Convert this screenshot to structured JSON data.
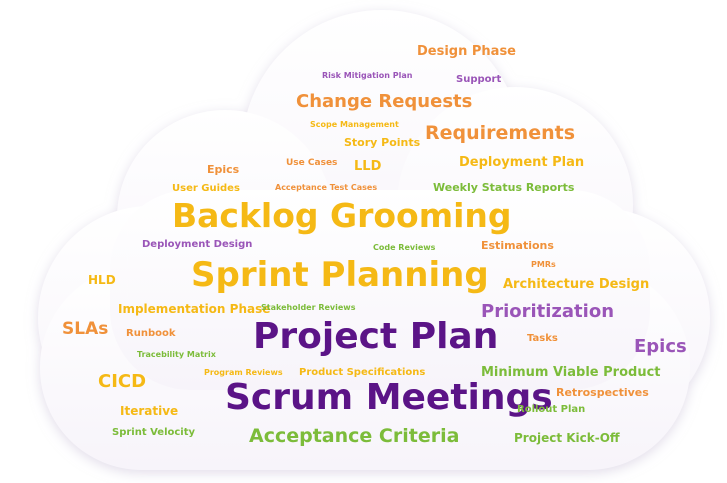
{
  "colors": {
    "orange": "#f0913a",
    "yellow": "#f5b915",
    "green": "#7cbc3a",
    "purple": "#9a55b8",
    "dark_purple": "#5b1487"
  },
  "words": [
    {
      "text": "Design Phase",
      "color": "orange"
    },
    {
      "text": "Risk Mitigation Plan",
      "color": "purple"
    },
    {
      "text": "Support",
      "color": "purple"
    },
    {
      "text": "Change Requests",
      "color": "orange"
    },
    {
      "text": "Scope Management",
      "color": "yellow"
    },
    {
      "text": "Requirements",
      "color": "orange"
    },
    {
      "text": "Story Points",
      "color": "yellow"
    },
    {
      "text": "Use Cases",
      "color": "orange"
    },
    {
      "text": "LLD",
      "color": "yellow"
    },
    {
      "text": "Epics",
      "color": "orange"
    },
    {
      "text": "Deployment Plan",
      "color": "yellow"
    },
    {
      "text": "User Guides",
      "color": "yellow"
    },
    {
      "text": "Acceptance Test Cases",
      "color": "orange"
    },
    {
      "text": "Weekly Status Reports",
      "color": "green"
    },
    {
      "text": "Backlog Grooming",
      "color": "yellow"
    },
    {
      "text": "Deployment Design",
      "color": "purple"
    },
    {
      "text": "Code Reviews",
      "color": "green"
    },
    {
      "text": "Estimations",
      "color": "orange"
    },
    {
      "text": "PMRs",
      "color": "orange"
    },
    {
      "text": "HLD",
      "color": "yellow"
    },
    {
      "text": "Sprint Planning",
      "color": "yellow"
    },
    {
      "text": "Architecture Design",
      "color": "yellow"
    },
    {
      "text": "Implementation Phase",
      "color": "yellow"
    },
    {
      "text": "Stakeholder Reviews",
      "color": "green"
    },
    {
      "text": "Prioritization",
      "color": "purple"
    },
    {
      "text": "SLAs",
      "color": "orange"
    },
    {
      "text": "Runbook",
      "color": "orange"
    },
    {
      "text": "Project Plan",
      "color": "dark_purple"
    },
    {
      "text": "Tasks",
      "color": "orange"
    },
    {
      "text": "Epics",
      "color": "purple"
    },
    {
      "text": "Tracebility Matrix",
      "color": "green"
    },
    {
      "text": "CICD",
      "color": "yellow"
    },
    {
      "text": "Program Reviews",
      "color": "yellow"
    },
    {
      "text": "Product Specifications",
      "color": "yellow"
    },
    {
      "text": "Minimum Viable Product",
      "color": "green"
    },
    {
      "text": "Retrospectives",
      "color": "orange"
    },
    {
      "text": "Iterative",
      "color": "yellow"
    },
    {
      "text": "Scrum Meetings",
      "color": "dark_purple"
    },
    {
      "text": "Rollout Plan",
      "color": "green"
    },
    {
      "text": "Sprint Velocity",
      "color": "green"
    },
    {
      "text": "Acceptance Criteria",
      "color": "green"
    },
    {
      "text": "Project Kick-Off",
      "color": "green"
    }
  ]
}
